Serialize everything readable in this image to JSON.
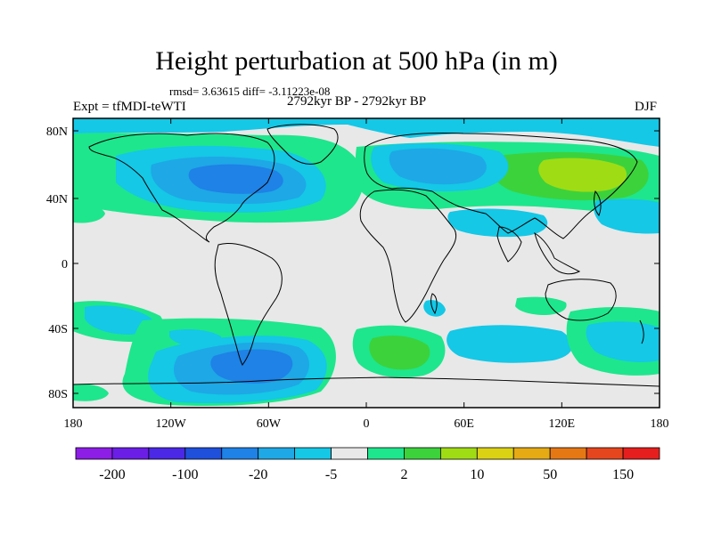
{
  "header": {
    "title": "Height perturbation at 500 hPa (in m)",
    "stats": "rmsd= 3.63615 diff= -3.11223e-08",
    "expt": "Expt = tfMDI-teWTI",
    "period": "2792kyr BP - 2792kyr BP",
    "season": "DJF"
  },
  "map": {
    "lat_ticks": [
      "80N",
      "40N",
      "0",
      "40S",
      "80S"
    ],
    "lon_ticks": [
      "180",
      "120W",
      "60W",
      "0",
      "60E",
      "120E",
      "180"
    ],
    "background_color": "#e8e8e8"
  },
  "colorbar": {
    "colors": [
      "#8c1ee6",
      "#6a1ee6",
      "#4a28e6",
      "#1e50dc",
      "#1e82e6",
      "#1ea8e6",
      "#14c8e6",
      "#e8e8e8",
      "#1ee68c",
      "#3cd23c",
      "#a0dc14",
      "#dcd214",
      "#e6aa14",
      "#e67814",
      "#e6461e",
      "#e61e1e"
    ],
    "labels": [
      "-200",
      "-100",
      "-20",
      "-5",
      "2",
      "10",
      "50",
      "150"
    ]
  }
}
